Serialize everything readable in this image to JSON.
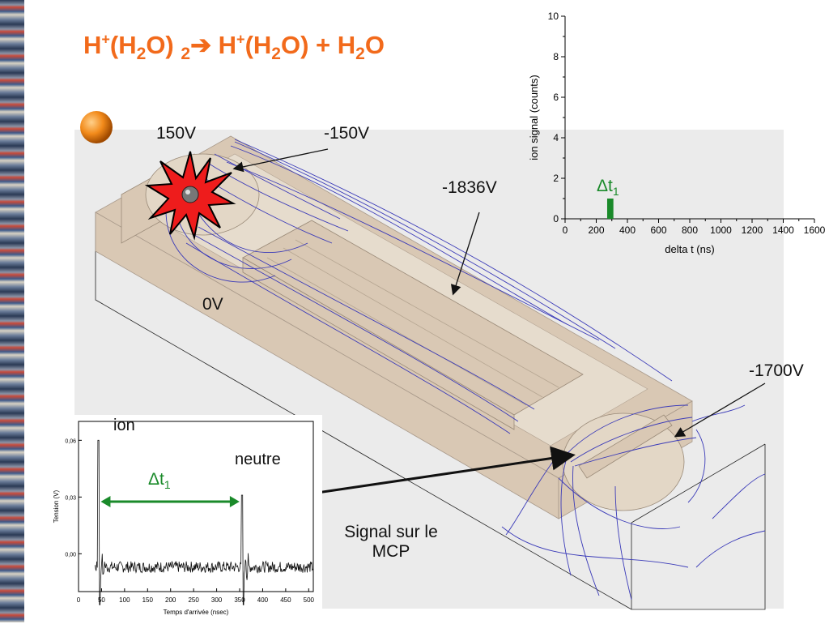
{
  "title": {
    "prefix": "H",
    "sup1": "+",
    "mid1": "(H",
    "sub1": "2",
    "mid2": "O) ",
    "sub2": "2",
    "arrow": "➔",
    "mid3": " H",
    "sup2": "+",
    "mid4": "(H",
    "sub3": "2",
    "mid5": "O) + H",
    "sub4": "2",
    "end": "O"
  },
  "labels": {
    "v150": "150V",
    "vm150": "-150V",
    "vm1836": "-1836V",
    "v0": "0V",
    "vm1700": "-1700V",
    "ion": "ion",
    "neutre": "neutre",
    "signal_line1": "Signal sur le",
    "signal_line2": "MCP",
    "dt_prefix": "Δt",
    "dt_sub": "1"
  },
  "colors": {
    "title": "#f26a1b",
    "green": "#1a8a2a",
    "field_lines": "#3a3ab8",
    "blocks": "#d9c8b4"
  },
  "chart_data": [
    {
      "type": "bar",
      "xlabel": "delta t (ns)",
      "ylabel": "ion signal (counts)",
      "xlim": [
        0,
        1600
      ],
      "ylim": [
        0,
        10
      ],
      "xticks": [
        "0",
        "200",
        "400",
        "600",
        "800",
        "1000",
        "1200",
        "1400",
        "1600"
      ],
      "yticks": [
        "0",
        "2",
        "4",
        "6",
        "8",
        "10"
      ],
      "bars": [
        {
          "x": 290,
          "width": 40,
          "value": 1
        }
      ],
      "annotation": "Δt1",
      "bar_color": "#1a8a2a"
    },
    {
      "type": "line",
      "xlabel": "Temps d'arrivée (nsec)",
      "ylabel": "Tension (V)",
      "xlim": [
        0,
        510
      ],
      "ylim": [
        -0.02,
        0.07
      ],
      "xticks": [
        "0",
        "50",
        "100",
        "150",
        "200",
        "250",
        "300",
        "350",
        "400",
        "450",
        "500"
      ],
      "yticks": [
        "0,00",
        "0,03",
        "0,06"
      ],
      "peaks": [
        {
          "x": 43,
          "y": 0.06
        },
        {
          "x": 355,
          "y": 0.031
        }
      ],
      "baseline": -0.007,
      "annotation": "Δt1"
    }
  ]
}
